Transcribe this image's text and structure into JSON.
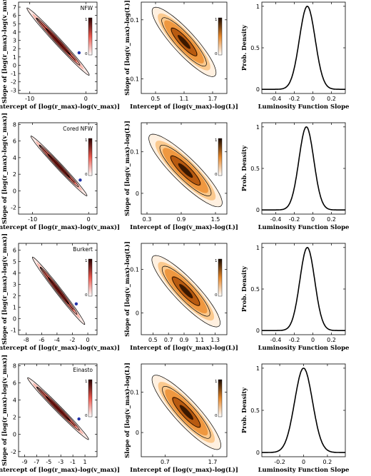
{
  "panel_titles": [
    "NFW",
    "Cored NFW",
    "Burkert",
    "Einasto"
  ],
  "left_column": {
    "xlabel": "Intercept of [log(r_max)-log(v_max)]",
    "ylabel": "Slope of [log(r_max)-log(v_max)]"
  },
  "middle_column": {
    "xlabel": "Intercept of [log(v_max)-log(L)]",
    "ylabel": "Slope of [log(v_max)-log(L)]"
  },
  "right_column": {
    "xlabel": "Luminosity Function Slope",
    "ylabel": "Prob. Density"
  },
  "colorbar_ticks": [
    "1",
    "0"
  ],
  "colors": {
    "left_low": "#fbe6e2",
    "left_high": "#cc1010",
    "middle_low": "#fde6cf",
    "middle_high": "#2a1200",
    "marker": "#2233aa"
  },
  "chart_data": [
    {
      "type": "heatmap",
      "row": 0,
      "col": 0,
      "title": "NFW",
      "xticks": [
        "-10",
        "0"
      ],
      "xtick_vals": [
        -10,
        0
      ],
      "xlim": [
        -12,
        2
      ],
      "yticks": [
        "-3",
        "-2",
        "-1",
        "0",
        "1",
        "2",
        "3",
        "4",
        "5",
        "6",
        "7"
      ],
      "ylim": [
        -3.4,
        7.6
      ],
      "contour": {
        "x0": -10.5,
        "y0": 6.9,
        "x1": 0.6,
        "y1": -1.2
      },
      "marker": [
        -1.2,
        1.5
      ]
    },
    {
      "type": "heatmap",
      "row": 0,
      "col": 1,
      "xticks": [
        "0.5",
        "1.1",
        "1.7"
      ],
      "xtick_vals": [
        0.5,
        1.1,
        1.7
      ],
      "xlim": [
        0.2,
        2.0
      ],
      "yticks": [
        "-0.1",
        "0.1"
      ],
      "ytick_vals": [
        -0.1,
        0.1
      ],
      "ylim": [
        -0.15,
        0.16
      ],
      "contour": {
        "x0": 0.45,
        "y0": 0.14,
        "x1": 1.75,
        "y1": -0.09
      }
    },
    {
      "type": "line",
      "row": 0,
      "col": 2,
      "xticks": [
        "-0.4",
        "-0.2",
        "0",
        "0.2"
      ],
      "xtick_vals": [
        -0.4,
        -0.2,
        0,
        0.2
      ],
      "xlim": [
        -0.55,
        0.35
      ],
      "yticks": [
        "0",
        "0.5",
        "1"
      ],
      "ytick_vals": [
        0,
        0.5,
        1
      ],
      "ylim": [
        -0.05,
        1.05
      ],
      "curve": {
        "mean": -0.06,
        "sd": 0.085
      }
    },
    {
      "type": "heatmap",
      "row": 1,
      "col": 0,
      "title": "Cored NFW",
      "xticks": [
        "-10",
        "0"
      ],
      "xtick_vals": [
        -10,
        0
      ],
      "xlim": [
        -12.5,
        1.5
      ],
      "yticks": [
        "-2",
        "0",
        "2",
        "4",
        "6",
        "8"
      ],
      "ytick_vals": [
        -2,
        0,
        2,
        4,
        6,
        8
      ],
      "ylim": [
        -2.8,
        8.2
      ],
      "contour": {
        "x0": -10.3,
        "y0": 6.6,
        "x1": -0.3,
        "y1": -0.6
      },
      "marker": [
        -1.5,
        1.3
      ]
    },
    {
      "type": "heatmap",
      "row": 1,
      "col": 1,
      "xticks": [
        "0.3",
        "0.9",
        "1.5"
      ],
      "xtick_vals": [
        0.3,
        0.9,
        1.5
      ],
      "xlim": [
        0.2,
        1.7
      ],
      "yticks": [
        "0",
        "0.1"
      ],
      "ytick_vals": [
        0,
        0.1
      ],
      "ylim": [
        -0.05,
        0.17
      ],
      "contour": {
        "x0": 0.35,
        "y0": 0.14,
        "x1": 1.6,
        "y1": -0.03
      }
    },
    {
      "type": "line",
      "row": 1,
      "col": 2,
      "xticks": [
        "-0.4",
        "-0.2",
        "0",
        "0.2"
      ],
      "xtick_vals": [
        -0.4,
        -0.2,
        0,
        0.2
      ],
      "xlim": [
        -0.55,
        0.35
      ],
      "yticks": [
        "0",
        "0.5",
        "1"
      ],
      "ytick_vals": [
        0,
        0.5,
        1
      ],
      "ylim": [
        -0.05,
        1.05
      ],
      "curve": {
        "mean": -0.07,
        "sd": 0.08
      }
    },
    {
      "type": "heatmap",
      "row": 2,
      "col": 0,
      "title": "Burkert",
      "xticks": [
        "-8",
        "-6",
        "-4",
        "-2",
        "0"
      ],
      "xtick_vals": [
        -8,
        -6,
        -4,
        -2,
        0
      ],
      "xlim": [
        -9,
        1.2
      ],
      "yticks": [
        "-1",
        "0",
        "1",
        "2",
        "3",
        "4",
        "5",
        "6"
      ],
      "ytick_vals": [
        -1,
        0,
        1,
        2,
        3,
        4,
        5,
        6
      ],
      "ylim": [
        -1.4,
        6.6
      ],
      "contour": {
        "x0": -7.2,
        "y0": 5.4,
        "x1": -0.4,
        "y1": -0.5
      },
      "marker": [
        -1.5,
        1.3
      ]
    },
    {
      "type": "heatmap",
      "row": 2,
      "col": 1,
      "xticks": [
        "0.5",
        "0.7",
        "0.9",
        "1.1",
        "1.3"
      ],
      "xtick_vals": [
        0.5,
        0.7,
        0.9,
        1.1,
        1.3
      ],
      "xlim": [
        0.35,
        1.45
      ],
      "yticks": [
        "0",
        "0.1"
      ],
      "ytick_vals": [
        0,
        0.1
      ],
      "ylim": [
        -0.05,
        0.16
      ],
      "contour": {
        "x0": 0.5,
        "y0": 0.13,
        "x1": 1.35,
        "y1": -0.03
      }
    },
    {
      "type": "line",
      "row": 2,
      "col": 2,
      "xticks": [
        "-0.4",
        "-0.2",
        "0",
        "0.2"
      ],
      "xtick_vals": [
        -0.4,
        -0.2,
        0,
        0.2
      ],
      "xlim": [
        -0.55,
        0.35
      ],
      "yticks": [
        "0",
        "0.5",
        "1"
      ],
      "ytick_vals": [
        0,
        0.5,
        1
      ],
      "ylim": [
        -0.05,
        1.05
      ],
      "curve": {
        "mean": -0.06,
        "sd": 0.08
      }
    },
    {
      "type": "heatmap",
      "row": 3,
      "col": 0,
      "title": "Einasto",
      "xticks": [
        "-9",
        "-7",
        "-5",
        "-3",
        "-1",
        "1"
      ],
      "xtick_vals": [
        -9,
        -7,
        -5,
        -3,
        -1,
        1
      ],
      "xlim": [
        -10,
        3
      ],
      "yticks": [
        "-2",
        "0",
        "2",
        "4",
        "6",
        "8"
      ],
      "ytick_vals": [
        -2,
        0,
        2,
        4,
        6,
        8
      ],
      "ylim": [
        -2.6,
        8.2
      ],
      "contour": {
        "x0": -8.5,
        "y0": 6.6,
        "x1": 1.6,
        "y1": -0.6
      },
      "marker": [
        0,
        1.8
      ]
    },
    {
      "type": "heatmap",
      "row": 3,
      "col": 1,
      "xticks": [
        "0.7",
        "1.7"
      ],
      "xtick_vals": [
        0.7,
        1.7
      ],
      "xlim": [
        0.2,
        2.0
      ],
      "yticks": [
        "0",
        "0.1"
      ],
      "ytick_vals": [
        0,
        0.1
      ],
      "ylim": [
        -0.06,
        0.17
      ],
      "contour": {
        "x0": 0.45,
        "y0": 0.14,
        "x1": 1.85,
        "y1": -0.04
      }
    },
    {
      "type": "line",
      "row": 3,
      "col": 2,
      "xticks": [
        "-0.2",
        "0",
        "0.2"
      ],
      "xtick_vals": [
        -0.2,
        0,
        0.2
      ],
      "xlim": [
        -0.35,
        0.35
      ],
      "yticks": [
        "0",
        "0.5",
        "1"
      ],
      "ytick_vals": [
        0,
        0.5,
        1
      ],
      "ylim": [
        -0.05,
        1.05
      ],
      "curve": {
        "mean": 0.0,
        "sd": 0.075
      }
    }
  ]
}
